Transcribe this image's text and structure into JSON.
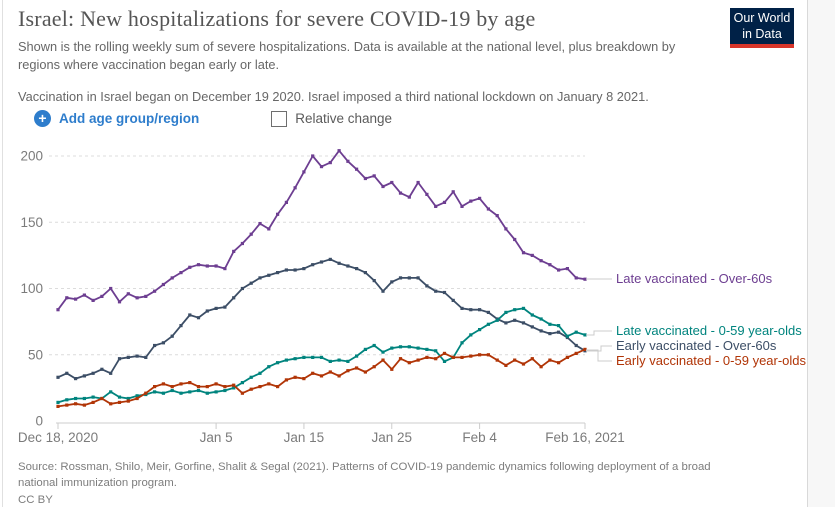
{
  "header": {
    "title": "Israel: New hospitalizations for severe COVID-19 by age",
    "subtitle": "Shown is the rolling weekly sum of severe hospitalizations. Data is available at the national level, plus breakdown by regions where vaccination began early or late.",
    "note": "Vaccination in Israel began on December 19 2020. Israel imposed a third national lockdown on January 8 2021."
  },
  "logo": {
    "line1": "Our World",
    "line2": "in Data"
  },
  "controls": {
    "add_button_label": "Add age group/region",
    "relative_change_label": "Relative change",
    "relative_change_checked": false
  },
  "colors": {
    "accent_blue": "#2e7dcc",
    "logo_navy": "#002147",
    "logo_red": "#d8352a"
  },
  "chart_data": {
    "type": "line",
    "x_axis": {
      "start_label": "Dec 18, 2020",
      "end_label": "Feb 16, 2021",
      "interval": "daily",
      "tick_days": [
        0,
        18,
        28,
        38,
        48,
        60
      ],
      "tick_labels": [
        "Dec 18, 2020",
        "Jan 5",
        "Jan 15",
        "Jan 25",
        "Feb 4",
        "Feb 16, 2021"
      ],
      "total_days": 60
    },
    "y_axis": {
      "ticks": [
        0,
        50,
        100,
        150,
        200
      ],
      "range": [
        0,
        210
      ],
      "grid": "dashed"
    },
    "legend_position": "right",
    "series": [
      {
        "name": "Late vaccinated - Over-60s",
        "color": "#6d3e91",
        "values": [
          84,
          93,
          92,
          95,
          91,
          94,
          100,
          90,
          96,
          93,
          94,
          98,
          103,
          108,
          112,
          116,
          118,
          117,
          117,
          115,
          128,
          134,
          141,
          149,
          145,
          156,
          165,
          176,
          188,
          200,
          192,
          195,
          204,
          196,
          190,
          183,
          185,
          177,
          180,
          172,
          169,
          180,
          171,
          162,
          165,
          173,
          162,
          166,
          168,
          160,
          155,
          145,
          137,
          127,
          125,
          121,
          118,
          114,
          115,
          108,
          107
        ]
      },
      {
        "name": "Early vaccinated - Over-60s",
        "color": "#3c4e66",
        "values": [
          33,
          36,
          32,
          34,
          36,
          39,
          36,
          47,
          48,
          49,
          48,
          57,
          59,
          64,
          72,
          80,
          78,
          83,
          85,
          86,
          93,
          100,
          104,
          108,
          110,
          112,
          114,
          114,
          115,
          118,
          120,
          122,
          119,
          117,
          115,
          112,
          106,
          98,
          105,
          108,
          108,
          108,
          102,
          98,
          97,
          91,
          85,
          84,
          84,
          82,
          77,
          74,
          76,
          74,
          71,
          68,
          66,
          67,
          63,
          57,
          53
        ]
      },
      {
        "name": "Late vaccinated - 0-59 year-olds",
        "color": "#00847e",
        "values": [
          14,
          16,
          17,
          17,
          18,
          17,
          22,
          18,
          17,
          19,
          20,
          22,
          21,
          23,
          21,
          22,
          23,
          21,
          22,
          23,
          25,
          29,
          33,
          36,
          41,
          44,
          46,
          47,
          48,
          48,
          48,
          45,
          46,
          45,
          49,
          54,
          57,
          52,
          55,
          56,
          56,
          55,
          54,
          53,
          45,
          48,
          59,
          65,
          69,
          73,
          76,
          82,
          84,
          85,
          80,
          77,
          73,
          72,
          64,
          67,
          65
        ]
      },
      {
        "name": "Early vaccinated - 0-59 year-olds",
        "color": "#b13507",
        "values": [
          11,
          12,
          13,
          12,
          14,
          17,
          13,
          14,
          15,
          17,
          21,
          26,
          28,
          26,
          28,
          29,
          26,
          26,
          28,
          26,
          27,
          21,
          24,
          26,
          28,
          26,
          31,
          33,
          32,
          36,
          34,
          37,
          34,
          38,
          40,
          37,
          41,
          46,
          39,
          47,
          44,
          46,
          48,
          47,
          51,
          48,
          48,
          49,
          50,
          50,
          46,
          42,
          46,
          43,
          47,
          41,
          46,
          44,
          48,
          51,
          54
        ]
      }
    ]
  },
  "footer": {
    "source": "Source: Rossman, Shilo, Meir, Gorfine, Shalit & Segal (2021). Patterns of COVID-19 pandemic dynamics following deployment of a broad national immunization program.",
    "license": "CC BY"
  }
}
